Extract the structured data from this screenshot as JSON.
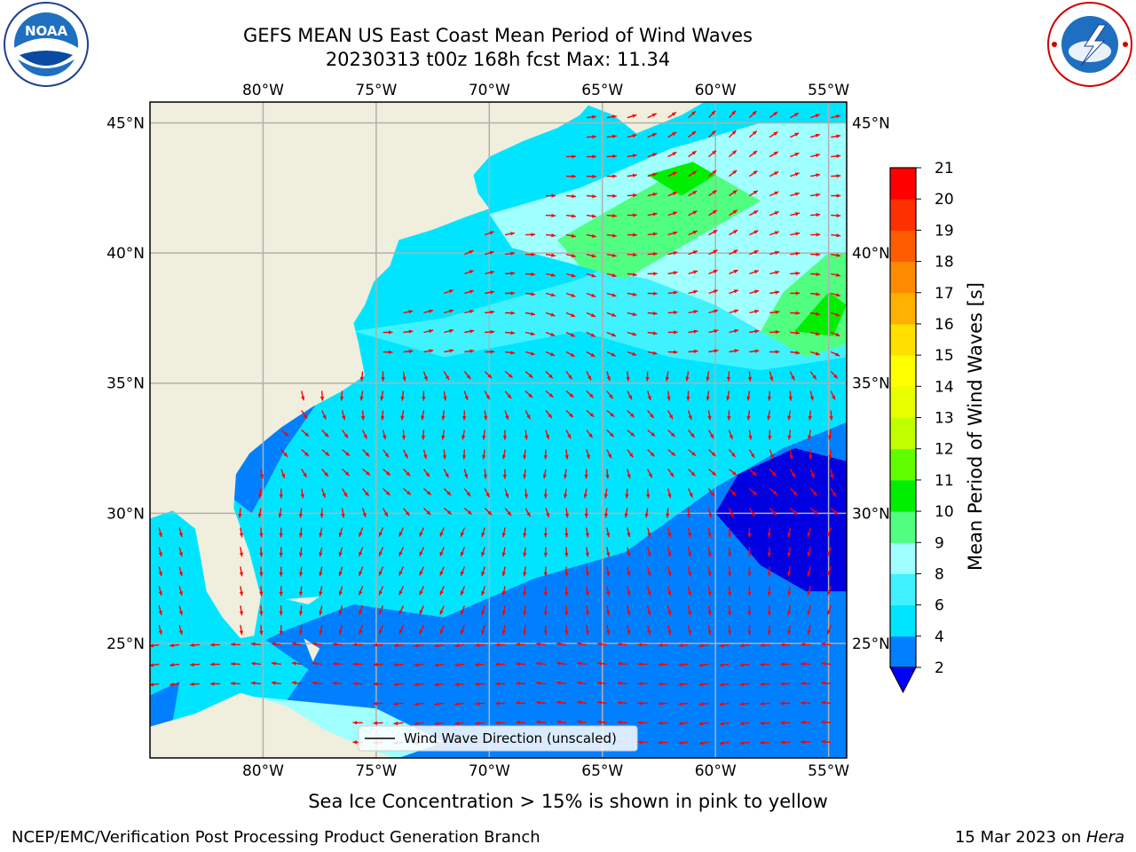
{
  "title": {
    "line1": "GEFS MEAN US East Coast Mean Period of Wind Waves",
    "line2": "20230313 t00z 168h fcst   Max: 11.34"
  },
  "map": {
    "lon_range": [
      -85,
      -54.2
    ],
    "lat_range": [
      20.6,
      45.8
    ],
    "lon_ticks": [
      "80°W",
      "75°W",
      "70°W",
      "65°W",
      "60°W",
      "55°W"
    ],
    "lat_ticks": [
      "45°N",
      "40°N",
      "35°N",
      "30°N",
      "25°N"
    ],
    "legend_label": "Wind Wave Direction (unscaled)",
    "colors": {
      "land": "#f0eedc",
      "arrow": "#ff0000",
      "grid": "#b0b0b0"
    }
  },
  "colorbar": {
    "label": "Mean Period of Wind Waves [s]",
    "ticks": [
      "2",
      "4",
      "6",
      "8",
      "9",
      "10",
      "11",
      "12",
      "13",
      "14",
      "15",
      "16",
      "17",
      "18",
      "19",
      "20",
      "21"
    ],
    "colors": [
      "#0080ff",
      "#00e5ff",
      "#40f2ff",
      "#a0ffff",
      "#50ff80",
      "#00ee00",
      "#60ff00",
      "#c0ff00",
      "#e8ff00",
      "#ffff00",
      "#ffe000",
      "#ffb000",
      "#ff8c00",
      "#ff5c00",
      "#ff3000",
      "#ff0000"
    ],
    "under_color": "#0000ff"
  },
  "footer": {
    "note": "Sea Ice Concentration > 15% is shown in pink to yellow",
    "left": "NCEP/EMC/Verification Post Processing Product Generation Branch",
    "right_date": "15 Mar 2023 on ",
    "right_machine": "Hera"
  }
}
